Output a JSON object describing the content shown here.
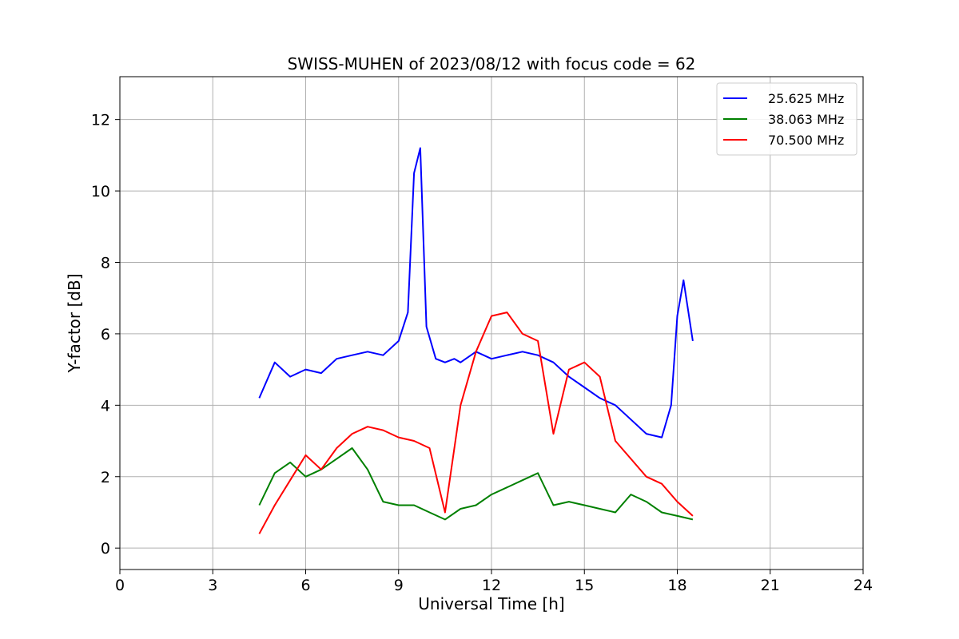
{
  "chart_data": {
    "type": "line",
    "title": "SWISS-MUHEN of 2023/08/12 with focus code = 62",
    "xlabel": "Universal Time [h]",
    "ylabel": "Y-factor [dB]",
    "xlim": [
      0,
      24
    ],
    "ylim": [
      -0.6,
      13.2
    ],
    "xticks": [
      0,
      3,
      6,
      9,
      12,
      15,
      18,
      21,
      24
    ],
    "yticks": [
      0,
      2,
      4,
      6,
      8,
      10,
      12
    ],
    "grid": true,
    "legend_position": "top-right",
    "series": [
      {
        "name": "25.625 MHz",
        "color": "#0000ff",
        "x": [
          4.5,
          5.0,
          5.5,
          6.0,
          6.5,
          7.0,
          7.5,
          8.0,
          8.5,
          9.0,
          9.3,
          9.5,
          9.7,
          9.9,
          10.2,
          10.5,
          10.8,
          11.0,
          11.5,
          12.0,
          12.5,
          13.0,
          13.5,
          14.0,
          14.5,
          15.0,
          15.5,
          16.0,
          16.5,
          17.0,
          17.5,
          17.8,
          18.0,
          18.2,
          18.5
        ],
        "y": [
          4.2,
          5.2,
          4.8,
          5.0,
          4.9,
          5.3,
          5.4,
          5.5,
          5.4,
          5.8,
          6.6,
          10.5,
          11.2,
          6.2,
          5.3,
          5.2,
          5.3,
          5.2,
          5.5,
          5.3,
          5.4,
          5.5,
          5.4,
          5.2,
          4.8,
          4.5,
          4.2,
          4.0,
          3.6,
          3.2,
          3.1,
          4.0,
          6.5,
          7.5,
          5.8
        ]
      },
      {
        "name": "38.063 MHz",
        "color": "#008000",
        "x": [
          4.5,
          5.0,
          5.5,
          6.0,
          6.5,
          7.0,
          7.5,
          8.0,
          8.5,
          9.0,
          9.5,
          10.0,
          10.5,
          11.0,
          11.5,
          12.0,
          12.5,
          13.0,
          13.5,
          14.0,
          14.5,
          15.0,
          15.5,
          16.0,
          16.5,
          17.0,
          17.5,
          18.0,
          18.5
        ],
        "y": [
          1.2,
          2.1,
          2.4,
          2.0,
          2.2,
          2.5,
          2.8,
          2.2,
          1.3,
          1.2,
          1.2,
          1.0,
          0.8,
          1.1,
          1.2,
          1.5,
          1.7,
          1.9,
          2.1,
          1.2,
          1.3,
          1.2,
          1.1,
          1.0,
          1.5,
          1.3,
          1.0,
          0.9,
          0.8
        ]
      },
      {
        "name": "70.500 MHz",
        "color": "#ff0000",
        "x": [
          4.5,
          5.0,
          5.5,
          6.0,
          6.5,
          7.0,
          7.5,
          8.0,
          8.5,
          9.0,
          9.5,
          10.0,
          10.5,
          11.0,
          11.5,
          12.0,
          12.5,
          13.0,
          13.5,
          14.0,
          14.5,
          15.0,
          15.5,
          16.0,
          16.5,
          17.0,
          17.5,
          18.0,
          18.5
        ],
        "y": [
          0.4,
          1.2,
          1.9,
          2.6,
          2.2,
          2.8,
          3.2,
          3.4,
          3.3,
          3.1,
          3.0,
          2.8,
          1.0,
          4.0,
          5.5,
          6.5,
          6.6,
          6.0,
          5.8,
          3.2,
          5.0,
          5.2,
          4.8,
          3.0,
          2.5,
          2.0,
          1.8,
          1.3,
          0.9
        ]
      }
    ]
  }
}
